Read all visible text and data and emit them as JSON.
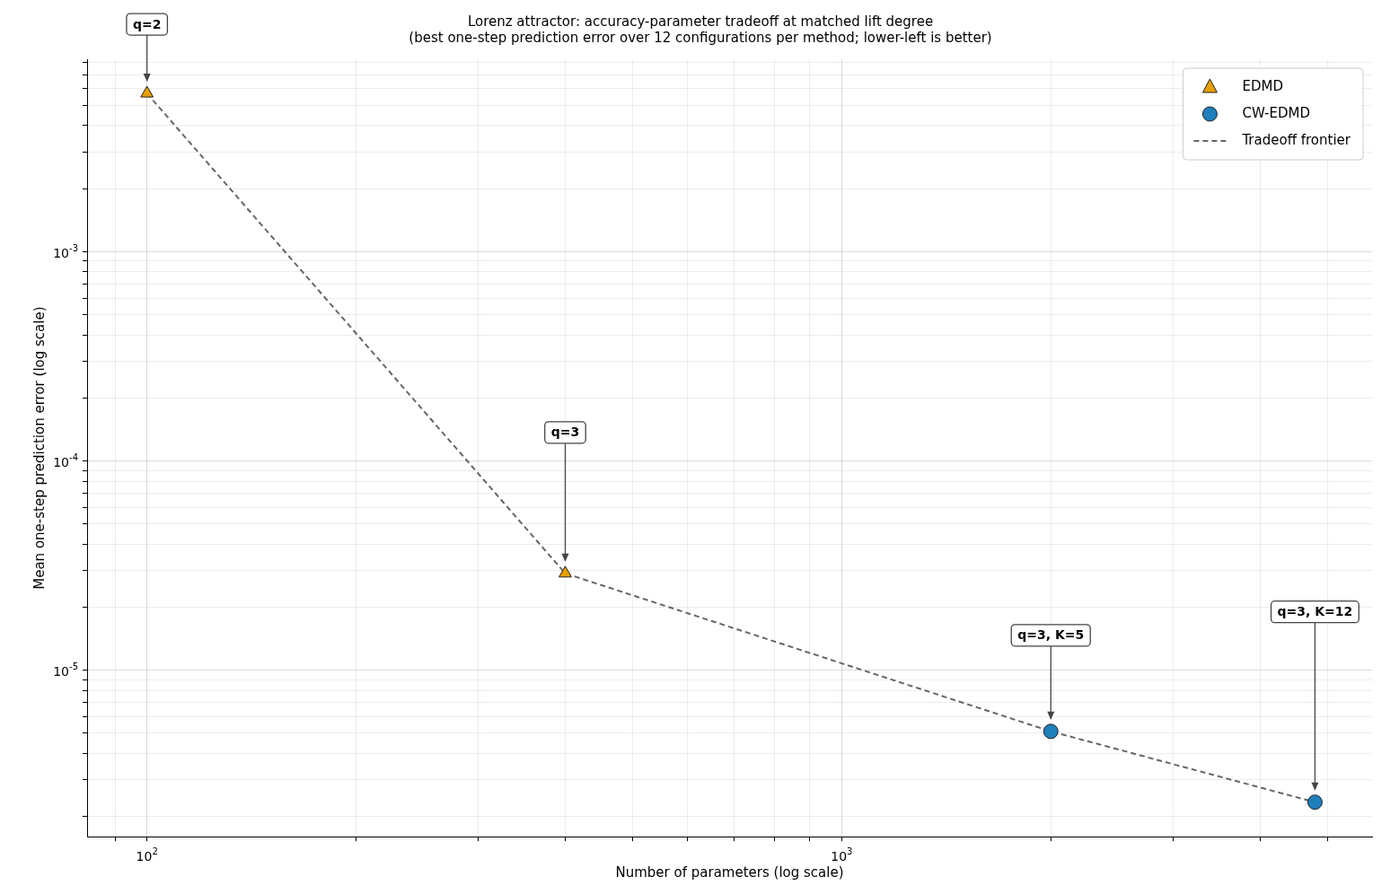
{
  "chart_data": {
    "type": "scatter",
    "title": "Lorenz attractor: accuracy-parameter tradeoff at matched lift degree",
    "subtitle": "(best one-step prediction error over 12 configurations per method; lower-left is better)",
    "xlabel": "Number of parameters (log scale)",
    "ylabel": "Mean one-step prediction error (log scale)",
    "log": "xy",
    "grid": true,
    "legend": "top right",
    "xlim": [
      82,
      5800
    ],
    "ylim": [
      1.6e-06,
      0.0083
    ],
    "xticks": [
      {
        "value": 90,
        "label": null
      },
      {
        "value": 100,
        "label": "10$^{2}$"
      },
      {
        "value": 200,
        "label": null
      },
      {
        "value": 300,
        "label": null
      },
      {
        "value": 400,
        "label": null
      },
      {
        "value": 500,
        "label": null
      },
      {
        "value": 600,
        "label": null
      },
      {
        "value": 700,
        "label": null
      },
      {
        "value": 800,
        "label": null
      },
      {
        "value": 900,
        "label": null
      },
      {
        "value": 1000,
        "label": "10$^{3}$"
      },
      {
        "value": 2000,
        "label": null
      },
      {
        "value": 3000,
        "label": null
      },
      {
        "value": 4000,
        "label": null
      },
      {
        "value": 5000,
        "label": null
      }
    ],
    "yticks": [
      {
        "value": 2e-06,
        "label": null
      },
      {
        "value": 3e-06,
        "label": null
      },
      {
        "value": 4e-06,
        "label": null
      },
      {
        "value": 5e-06,
        "label": null
      },
      {
        "value": 6e-06,
        "label": null
      },
      {
        "value": 7e-06,
        "label": null
      },
      {
        "value": 8e-06,
        "label": null
      },
      {
        "value": 9e-06,
        "label": null
      },
      {
        "value": 1e-05,
        "label": "10$^{-5}$"
      },
      {
        "value": 2e-05,
        "label": null
      },
      {
        "value": 3e-05,
        "label": null
      },
      {
        "value": 4e-05,
        "label": null
      },
      {
        "value": 5e-05,
        "label": null
      },
      {
        "value": 6e-05,
        "label": null
      },
      {
        "value": 7e-05,
        "label": null
      },
      {
        "value": 8e-05,
        "label": null
      },
      {
        "value": 9e-05,
        "label": null
      },
      {
        "value": 0.0001,
        "label": "10$^{-4}$"
      },
      {
        "value": 0.0002,
        "label": null
      },
      {
        "value": 0.0003,
        "label": null
      },
      {
        "value": 0.0004,
        "label": null
      },
      {
        "value": 0.0005,
        "label": null
      },
      {
        "value": 0.0006,
        "label": null
      },
      {
        "value": 0.0007,
        "label": null
      },
      {
        "value": 0.0008,
        "label": null
      },
      {
        "value": 0.0009,
        "label": null
      },
      {
        "value": 0.001,
        "label": "10$^{-3}$"
      },
      {
        "value": 0.002,
        "label": null
      },
      {
        "value": 0.003,
        "label": null
      },
      {
        "value": 0.004,
        "label": null
      },
      {
        "value": 0.005,
        "label": null
      },
      {
        "value": 0.006,
        "label": null
      },
      {
        "value": 0.007,
        "label": null
      },
      {
        "value": 0.008,
        "label": null
      }
    ],
    "series": [
      {
        "name": "EDMD",
        "type": "scatter",
        "marker": "triangle",
        "color": "#e69f00",
        "x": [
          100,
          400
        ],
        "values": [
          0.0057,
          2.9e-05
        ]
      },
      {
        "name": "CW-EDMD",
        "type": "scatter",
        "marker": "circle",
        "color": "#1f7fba",
        "x": [
          2000,
          4800
        ],
        "values": [
          5.1e-06,
          2.34e-06
        ]
      },
      {
        "name": "Tradeoff frontier",
        "type": "line",
        "marker": "none",
        "line_style": "dashed",
        "color": "#666666",
        "x": [
          100,
          400,
          2000,
          4800
        ],
        "values": [
          0.0057,
          2.9e-05,
          5.1e-06,
          2.34e-06
        ]
      }
    ],
    "annotations": [
      "q=2",
      "q=3",
      "q=3, K=5",
      "q=3, K=12"
    ]
  }
}
